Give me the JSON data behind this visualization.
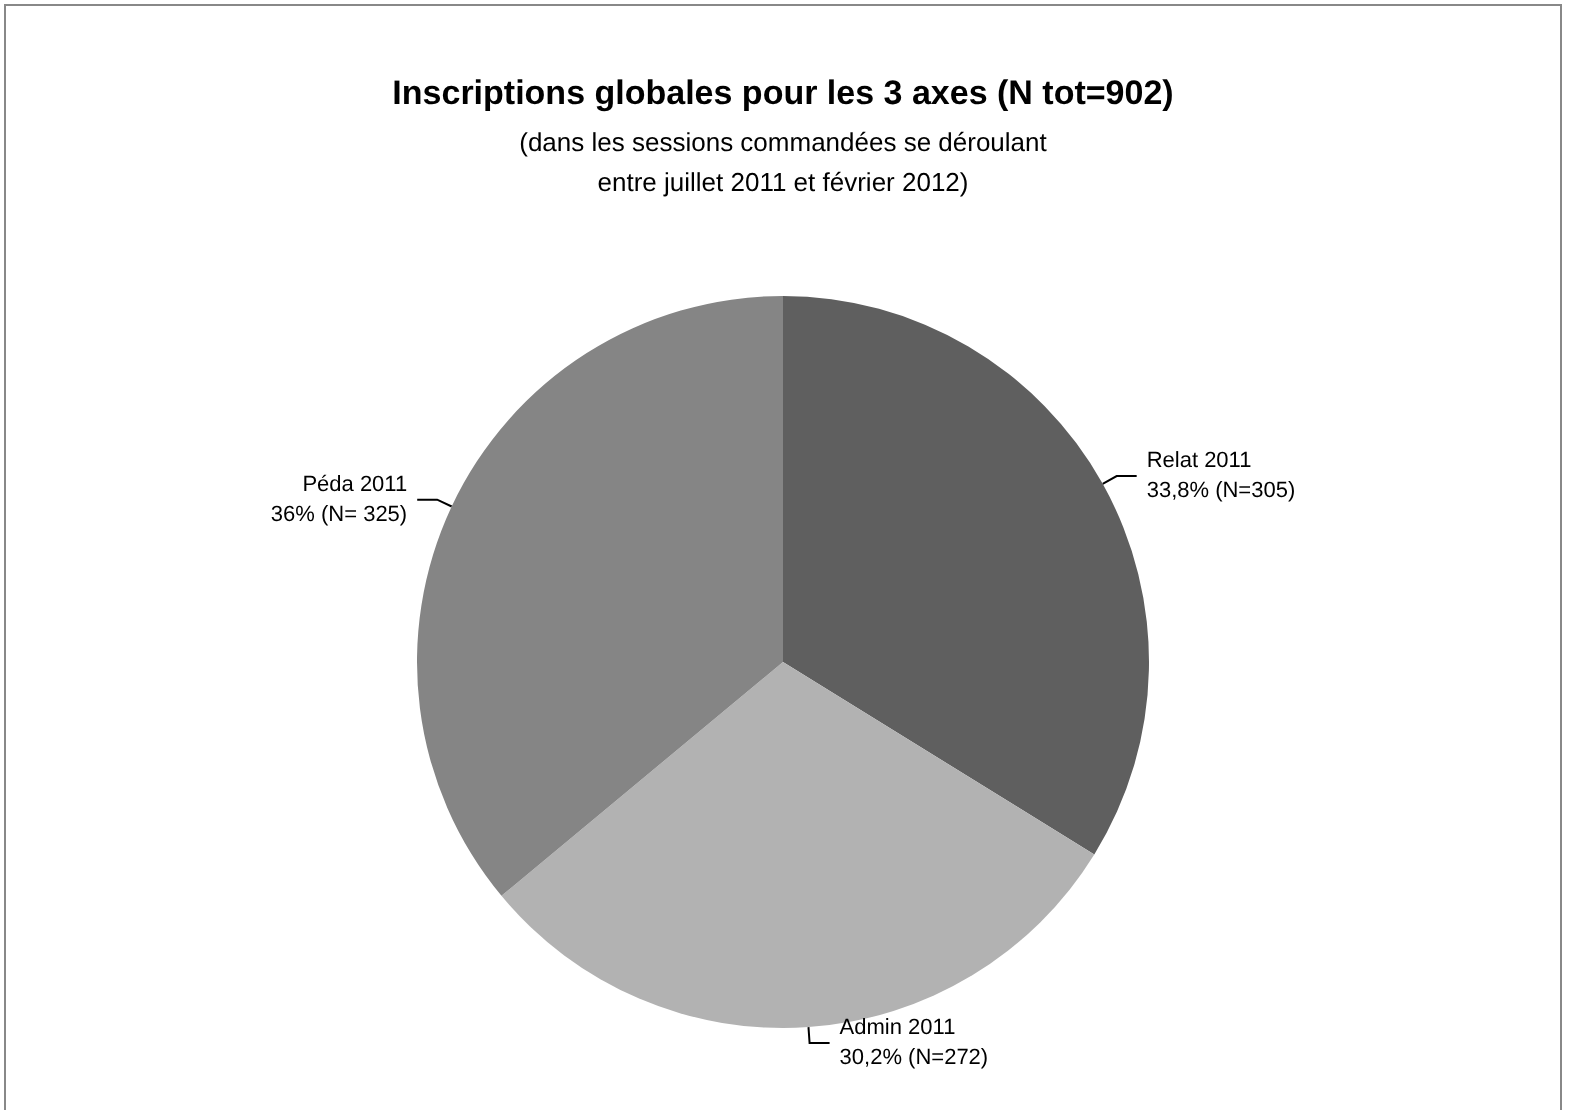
{
  "chart_data": {
    "type": "pie",
    "title": "Inscriptions globales pour les 3 axes (N tot=902)",
    "subtitle": "(dans les sessions commandées se déroulant\nentre juillet 2011 et février 2012)",
    "categories": [
      "Relat 2011",
      "Admin 2011",
      "Péda 2011"
    ],
    "values": [
      305,
      272,
      325
    ],
    "value_labels": [
      "33,8% (N=305)",
      "30,2% (N=272)",
      "36% (N= 325)"
    ],
    "colors": [
      "#5f5f5f",
      "#b2b2b2",
      "#858585"
    ],
    "legend": false
  }
}
